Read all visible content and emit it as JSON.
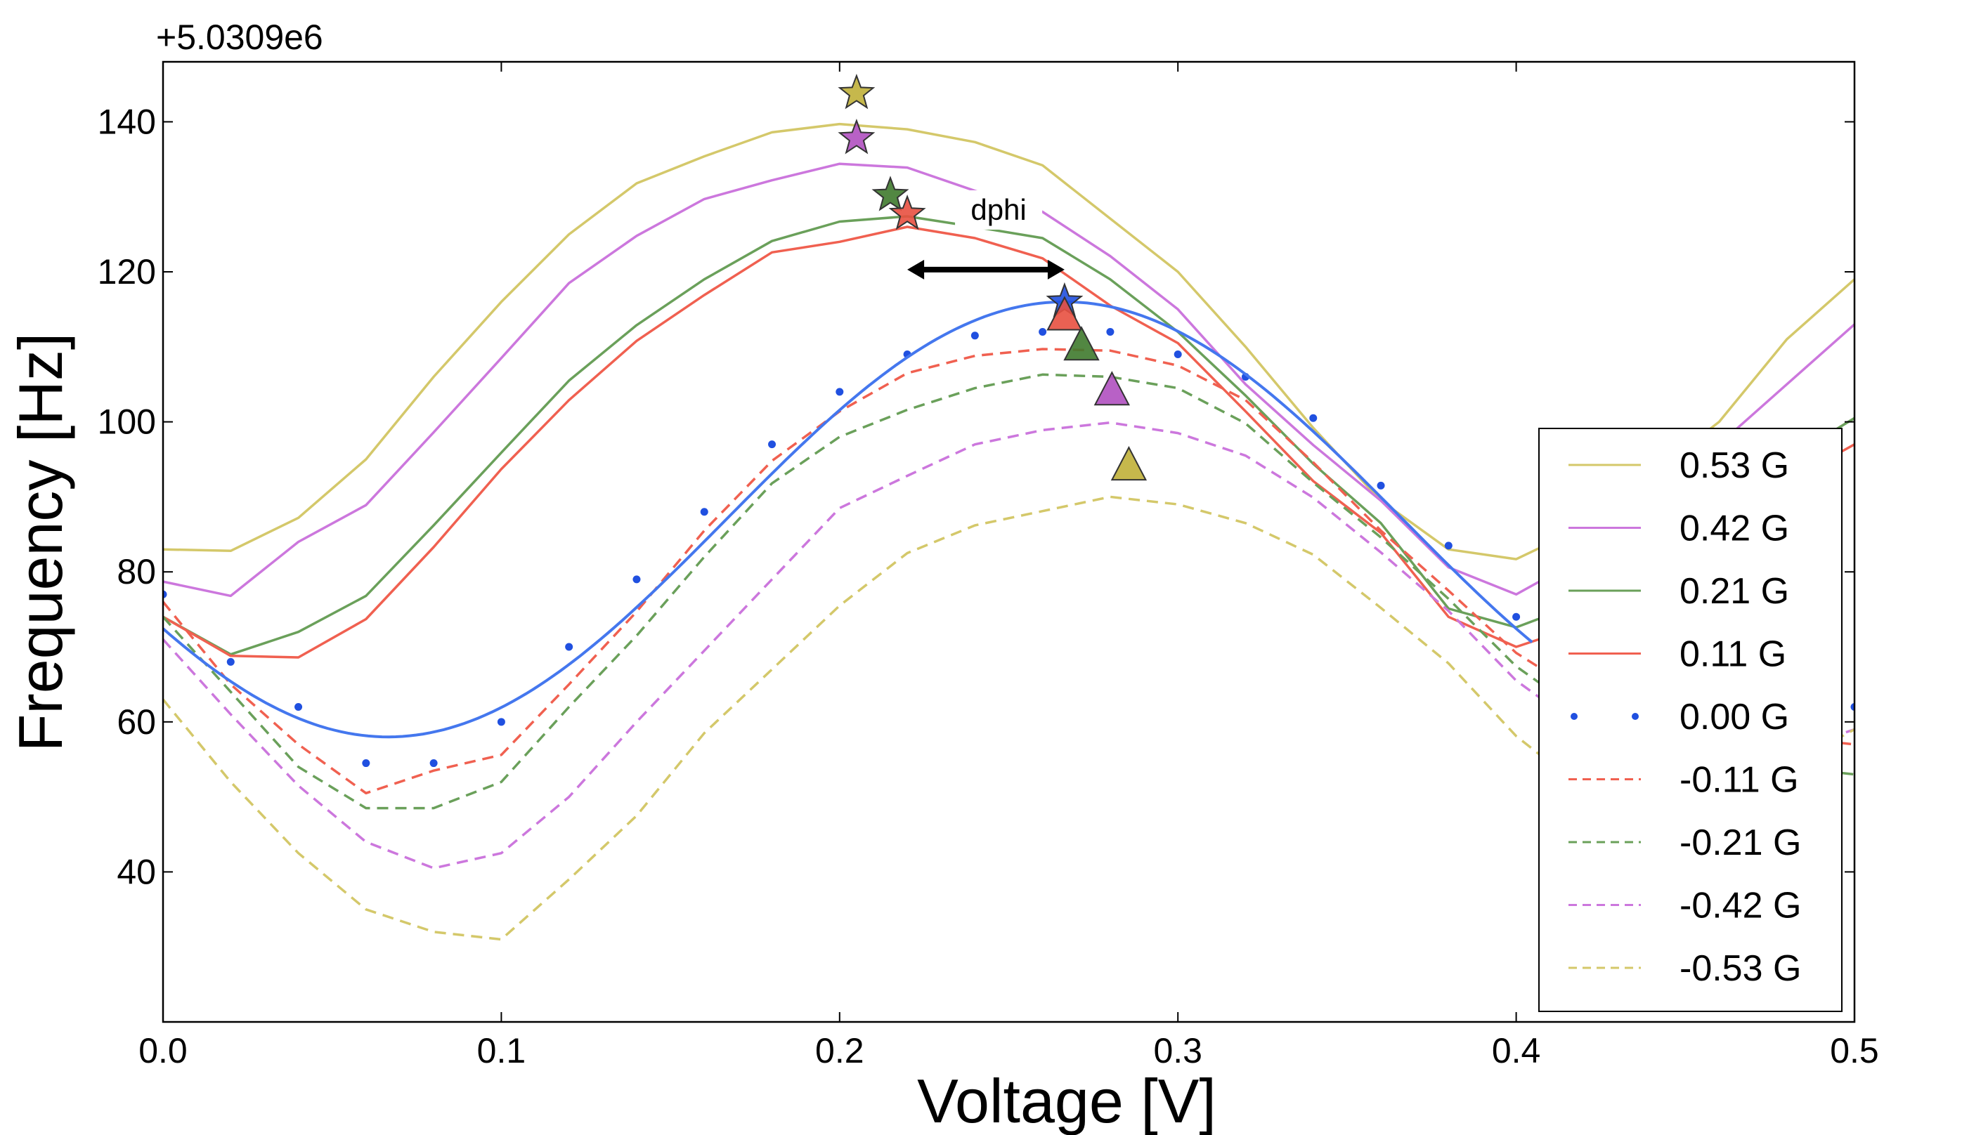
{
  "chart_data": {
    "type": "line",
    "offset_label": "+5.0309e6",
    "xlabel": "Voltage [V]",
    "ylabel": "Frequency [Hz]",
    "xlim": [
      0.0,
      0.5
    ],
    "ylim": [
      20,
      148
    ],
    "x_ticks": [
      0.0,
      0.1,
      0.2,
      0.3,
      0.4,
      0.5
    ],
    "x_tick_labels": [
      "0.0",
      "0.1",
      "0.2",
      "0.3",
      "0.4",
      "0.5"
    ],
    "y_ticks": [
      40,
      60,
      80,
      100,
      120,
      140
    ],
    "y_tick_labels": [
      "40",
      "60",
      "80",
      "100",
      "120",
      "140"
    ],
    "x": [
      0.0,
      0.02,
      0.04,
      0.06,
      0.08,
      0.1,
      0.12,
      0.14,
      0.16,
      0.18,
      0.2,
      0.22,
      0.24,
      0.26,
      0.28,
      0.3,
      0.32,
      0.34,
      0.36,
      0.38,
      0.4,
      0.42,
      0.44,
      0.46,
      0.48,
      0.5
    ],
    "series": [
      {
        "name": "0.53 G",
        "style": "solid",
        "color": "#d4c86a",
        "values": [
          83,
          82.8,
          87.2,
          95,
          106,
          116,
          125,
          131.8,
          135.4,
          138.6,
          139.7,
          139.0,
          137.3,
          134.2,
          127.1,
          120,
          110,
          99.2,
          89.5,
          83,
          81.7,
          86,
          93,
          100,
          111,
          119
        ]
      },
      {
        "name": "0.42 G",
        "style": "solid",
        "color": "#cc77dd",
        "values": [
          78.7,
          76.8,
          84,
          88.9,
          98.6,
          108.5,
          118.5,
          124.8,
          129.7,
          132.2,
          134.4,
          133.9,
          130.8,
          128,
          122.1,
          115,
          105,
          96.9,
          89.5,
          80.6,
          77,
          82,
          89,
          97,
          105,
          113
        ]
      },
      {
        "name": "0.21 G",
        "style": "solid",
        "color": "#6aa05a",
        "values": [
          74,
          69,
          72,
          76.8,
          86.2,
          95.9,
          105.5,
          112.9,
          119,
          124.1,
          126.7,
          127.4,
          126,
          124.5,
          119,
          112,
          103.5,
          94.4,
          86.5,
          75.1,
          72.6,
          76,
          83,
          90,
          95,
          100.5
        ]
      },
      {
        "name": "0.11 G",
        "style": "solid",
        "color": "#f06050",
        "values": [
          74,
          68.8,
          68.6,
          73.7,
          83.3,
          93.7,
          102.9,
          110.8,
          116.9,
          122.6,
          124,
          126,
          124.5,
          121.8,
          115.5,
          110.5,
          101.4,
          92.1,
          85.2,
          74,
          70,
          73,
          80,
          86,
          92,
          97
        ]
      },
      {
        "name": "0.00 G",
        "style": "dots",
        "color": "#2050e0",
        "fit_color": "#4477ee",
        "values": [
          77,
          68,
          62,
          54.5,
          54.5,
          60,
          70,
          79,
          88,
          97,
          104,
          109,
          111.5,
          112,
          112,
          109,
          106,
          100.5,
          91.5,
          83.5,
          74,
          63,
          57,
          56,
          59,
          62
        ]
      },
      {
        "name": "-0.11 G",
        "style": "dashed",
        "color": "#f06050",
        "values": [
          76,
          65,
          57,
          50.5,
          53.5,
          55.6,
          65,
          74.7,
          85.5,
          94.8,
          101.4,
          106.5,
          108.8,
          109.7,
          109.5,
          107.5,
          102.9,
          94.6,
          85.5,
          77.5,
          69.2,
          63.5,
          60,
          59,
          58,
          57
        ]
      },
      {
        "name": "-0.21 G",
        "style": "dashed",
        "color": "#6aa05a",
        "values": [
          74,
          64,
          54,
          48.5,
          48.5,
          52,
          62,
          71.5,
          82,
          91.8,
          98,
          101.6,
          104.5,
          106.3,
          106,
          104.5,
          99.8,
          91.9,
          84.6,
          76.4,
          67.4,
          61,
          57,
          55,
          54,
          53
        ]
      },
      {
        "name": "-0.42 G",
        "style": "dashed",
        "color": "#cc77dd",
        "values": [
          71,
          61,
          51.5,
          44,
          40.5,
          42.5,
          50,
          60,
          69.5,
          79,
          88.5,
          92.8,
          97,
          98.9,
          99.9,
          98.5,
          95.5,
          89.9,
          82.6,
          74.8,
          65.5,
          59,
          56,
          55,
          56,
          59
        ]
      },
      {
        "name": "-0.53 G",
        "style": "dashed",
        "color": "#d4c86a",
        "values": [
          63,
          52,
          42.5,
          35,
          32,
          31,
          39,
          47.5,
          58.5,
          67,
          75.5,
          82.5,
          86.2,
          88.1,
          90,
          89,
          86.5,
          82.3,
          75.2,
          67.8,
          58.1,
          51,
          48,
          50,
          54,
          59
        ]
      }
    ],
    "fit_curve": {
      "series": "0.00 G",
      "center": 87,
      "amplitude": 29,
      "min_x": 0.0665,
      "max_x": 0.2665,
      "x_range": [
        0.0,
        0.4047
      ],
      "color": "#4477ee"
    },
    "markers": [
      {
        "shape": "star",
        "x": 0.205,
        "y": 143.8,
        "color": "#c0b038"
      },
      {
        "shape": "star",
        "x": 0.205,
        "y": 137.8,
        "color": "#b050c0"
      },
      {
        "shape": "star",
        "x": 0.215,
        "y": 130.2,
        "color": "#3f7a2e"
      },
      {
        "shape": "star",
        "x": 0.22,
        "y": 127.7,
        "color": "#e85040"
      },
      {
        "shape": "star",
        "x": 0.2665,
        "y": 116,
        "color": "#2050e0"
      },
      {
        "shape": "triangle",
        "x": 0.2665,
        "y": 114,
        "color": "#e85040"
      },
      {
        "shape": "triangle",
        "x": 0.2715,
        "y": 110,
        "color": "#3f7a2e"
      },
      {
        "shape": "triangle",
        "x": 0.2805,
        "y": 104,
        "color": "#b050c0"
      },
      {
        "shape": "triangle",
        "x": 0.2855,
        "y": 94,
        "color": "#c0b038"
      }
    ],
    "annotation": {
      "text": "dphi",
      "arrow_from_x": 0.22,
      "arrow_to_x": 0.2665,
      "arrow_y": 120.3,
      "text_x": 0.247,
      "text_y": 127.5
    },
    "legend_position": "right"
  }
}
